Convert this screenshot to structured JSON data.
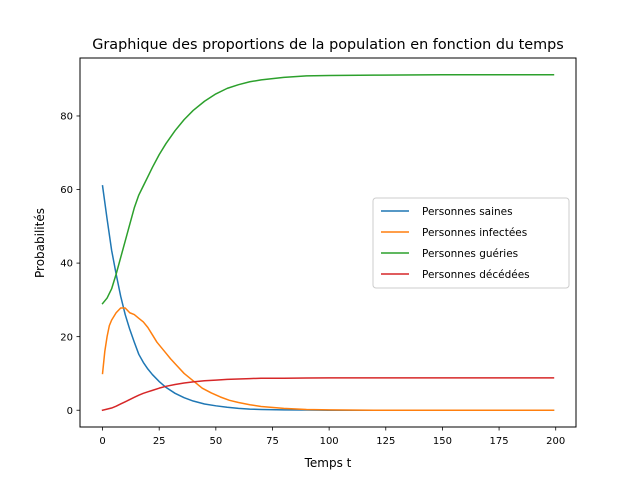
{
  "chart_data": {
    "type": "line",
    "title": "Graphique des proportions de la population en fonction du temps",
    "xlabel": "Temps t",
    "ylabel": "Probabilités",
    "xlim": [
      -9.95,
      208.95
    ],
    "ylim": [
      -4.56,
      95.76
    ],
    "xticks": [
      0,
      25,
      50,
      75,
      100,
      125,
      150,
      175,
      200
    ],
    "yticks": [
      0,
      20,
      40,
      60,
      80
    ],
    "grid": false,
    "legend_position": "center-right",
    "series": [
      {
        "name": "Personnes saines",
        "color": "#1f77b4",
        "x": [
          0,
          2,
          4,
          6,
          8,
          10,
          12,
          14,
          16,
          18,
          20,
          22,
          25,
          28,
          32,
          36,
          40,
          45,
          50,
          55,
          60,
          65,
          70,
          80,
          90,
          100,
          120,
          150,
          199
        ],
        "y": [
          61,
          52,
          43.5,
          37,
          31,
          26,
          22,
          18.5,
          15.2,
          13,
          11.2,
          9.7,
          7.8,
          6.2,
          4.6,
          3.4,
          2.5,
          1.7,
          1.2,
          0.8,
          0.5,
          0.3,
          0.2,
          0.1,
          0.05,
          0,
          0,
          0,
          0
        ]
      },
      {
        "name": "Personnes infectées",
        "color": "#ff7f0e",
        "x": [
          0,
          1,
          2,
          3,
          4,
          6,
          8,
          10,
          12,
          14,
          16,
          18,
          20,
          22,
          24,
          26,
          28,
          30,
          33,
          36,
          40,
          44,
          48,
          52,
          56,
          60,
          65,
          70,
          80,
          90,
          100,
          120,
          150,
          199
        ],
        "y": [
          10,
          16,
          20,
          23,
          24.5,
          26.5,
          27.8,
          27.8,
          26.5,
          26,
          25,
          24,
          22.5,
          20.5,
          18.5,
          17,
          15.5,
          14,
          12,
          10,
          8,
          6,
          4.7,
          3.6,
          2.7,
          2.1,
          1.5,
          1,
          0.5,
          0.2,
          0.1,
          0,
          0,
          0
        ]
      },
      {
        "name": "Personnes guéries",
        "color": "#2ca02c",
        "x": [
          0,
          2,
          4,
          6,
          8,
          10,
          12,
          14,
          16,
          18,
          20,
          22,
          25,
          28,
          32,
          36,
          40,
          45,
          50,
          55,
          60,
          65,
          70,
          80,
          90,
          100,
          120,
          150,
          199
        ],
        "y": [
          29,
          30.5,
          33,
          37,
          41.5,
          46,
          50.5,
          55,
          58.5,
          61,
          63.5,
          66,
          69.5,
          72.5,
          76,
          79,
          81.5,
          84,
          86,
          87.5,
          88.5,
          89.3,
          89.8,
          90.5,
          90.9,
          91,
          91.1,
          91.2,
          91.2
        ]
      },
      {
        "name": "Personnes décédées",
        "color": "#d62728",
        "x": [
          0,
          2,
          4,
          6,
          8,
          10,
          12,
          14,
          16,
          18,
          20,
          22,
          25,
          28,
          32,
          36,
          40,
          45,
          50,
          55,
          60,
          65,
          70,
          80,
          90,
          100,
          120,
          150,
          199
        ],
        "y": [
          0,
          0.3,
          0.6,
          1.1,
          1.7,
          2.3,
          2.9,
          3.5,
          4.1,
          4.6,
          5.0,
          5.4,
          6.0,
          6.5,
          7.0,
          7.4,
          7.7,
          8.0,
          8.2,
          8.4,
          8.5,
          8.6,
          8.7,
          8.7,
          8.75,
          8.8,
          8.8,
          8.8,
          8.8
        ]
      }
    ]
  }
}
